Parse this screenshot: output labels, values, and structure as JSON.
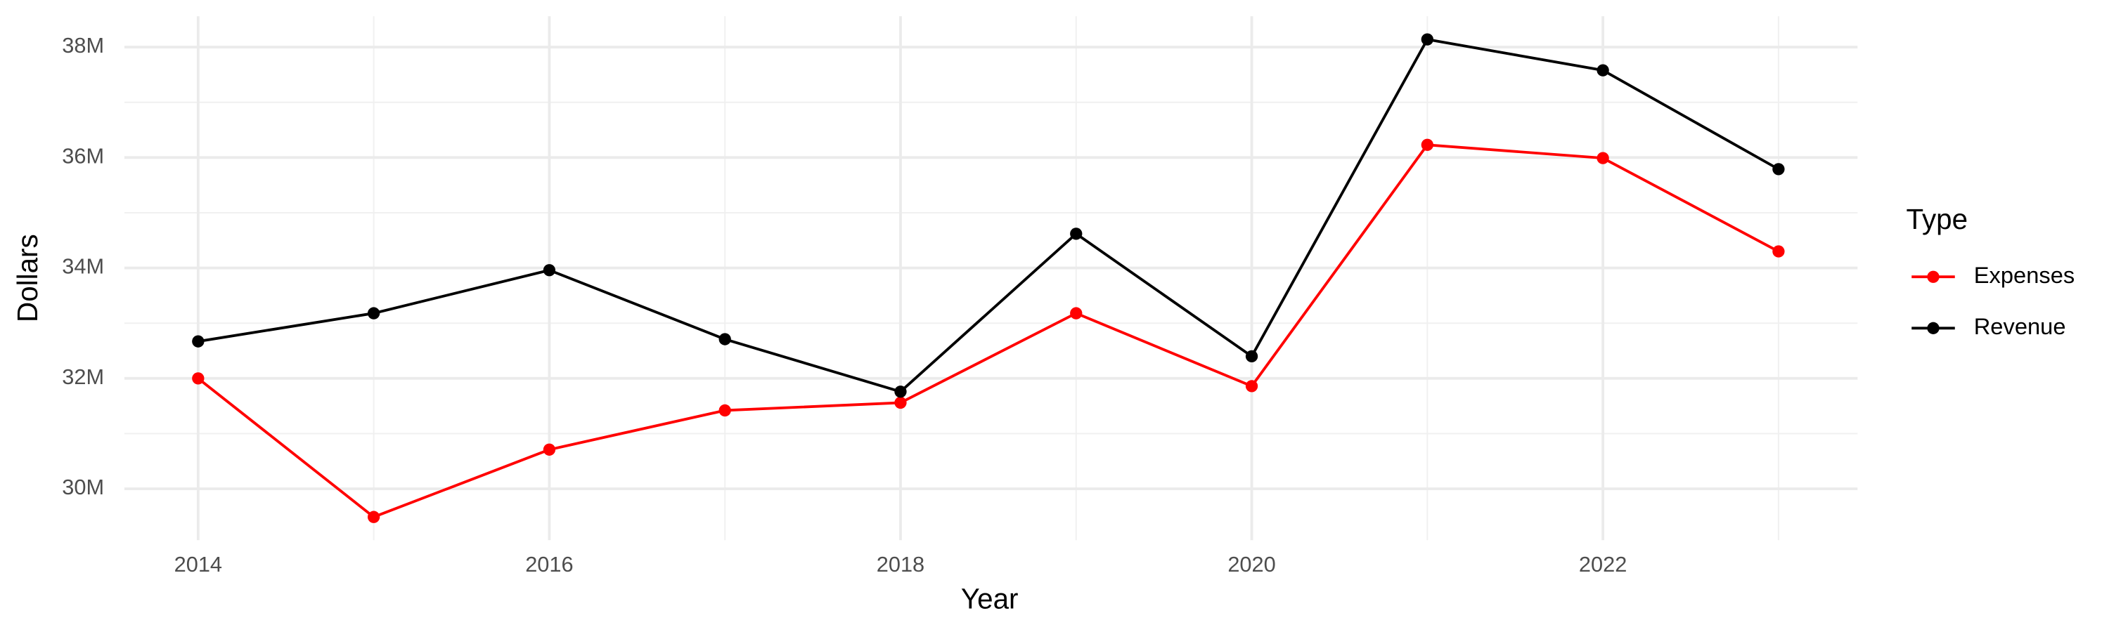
{
  "chart_data": {
    "type": "line",
    "x_label": "Year",
    "y_label": "Dollars",
    "legend_title": "Type",
    "legend": "right",
    "grid": true,
    "x": [
      2014,
      2015,
      2016,
      2017,
      2018,
      2019,
      2020,
      2021,
      2022,
      2023
    ],
    "series": [
      {
        "name": "Expenses",
        "color": "#ff0000",
        "values": [
          32000000,
          29490000,
          30710000,
          31420000,
          31560000,
          33180000,
          31860000,
          36230000,
          35990000,
          34300000
        ]
      },
      {
        "name": "Revenue",
        "color": "#000000",
        "values": [
          32670000,
          33180000,
          33960000,
          32710000,
          31760000,
          34620000,
          32400000,
          38140000,
          37580000,
          35790000
        ]
      }
    ],
    "xlim": [
      2013.58,
      2023.45
    ],
    "xticks": [
      2014,
      2016,
      2018,
      2020,
      2022
    ],
    "ylim": [
      29070000,
      38560000
    ],
    "yticks": [
      {
        "value": 30000000,
        "label": "30M"
      },
      {
        "value": 32000000,
        "label": "32M"
      },
      {
        "value": 34000000,
        "label": "34M"
      },
      {
        "value": 36000000,
        "label": "36M"
      },
      {
        "value": 38000000,
        "label": "38M"
      }
    ]
  }
}
